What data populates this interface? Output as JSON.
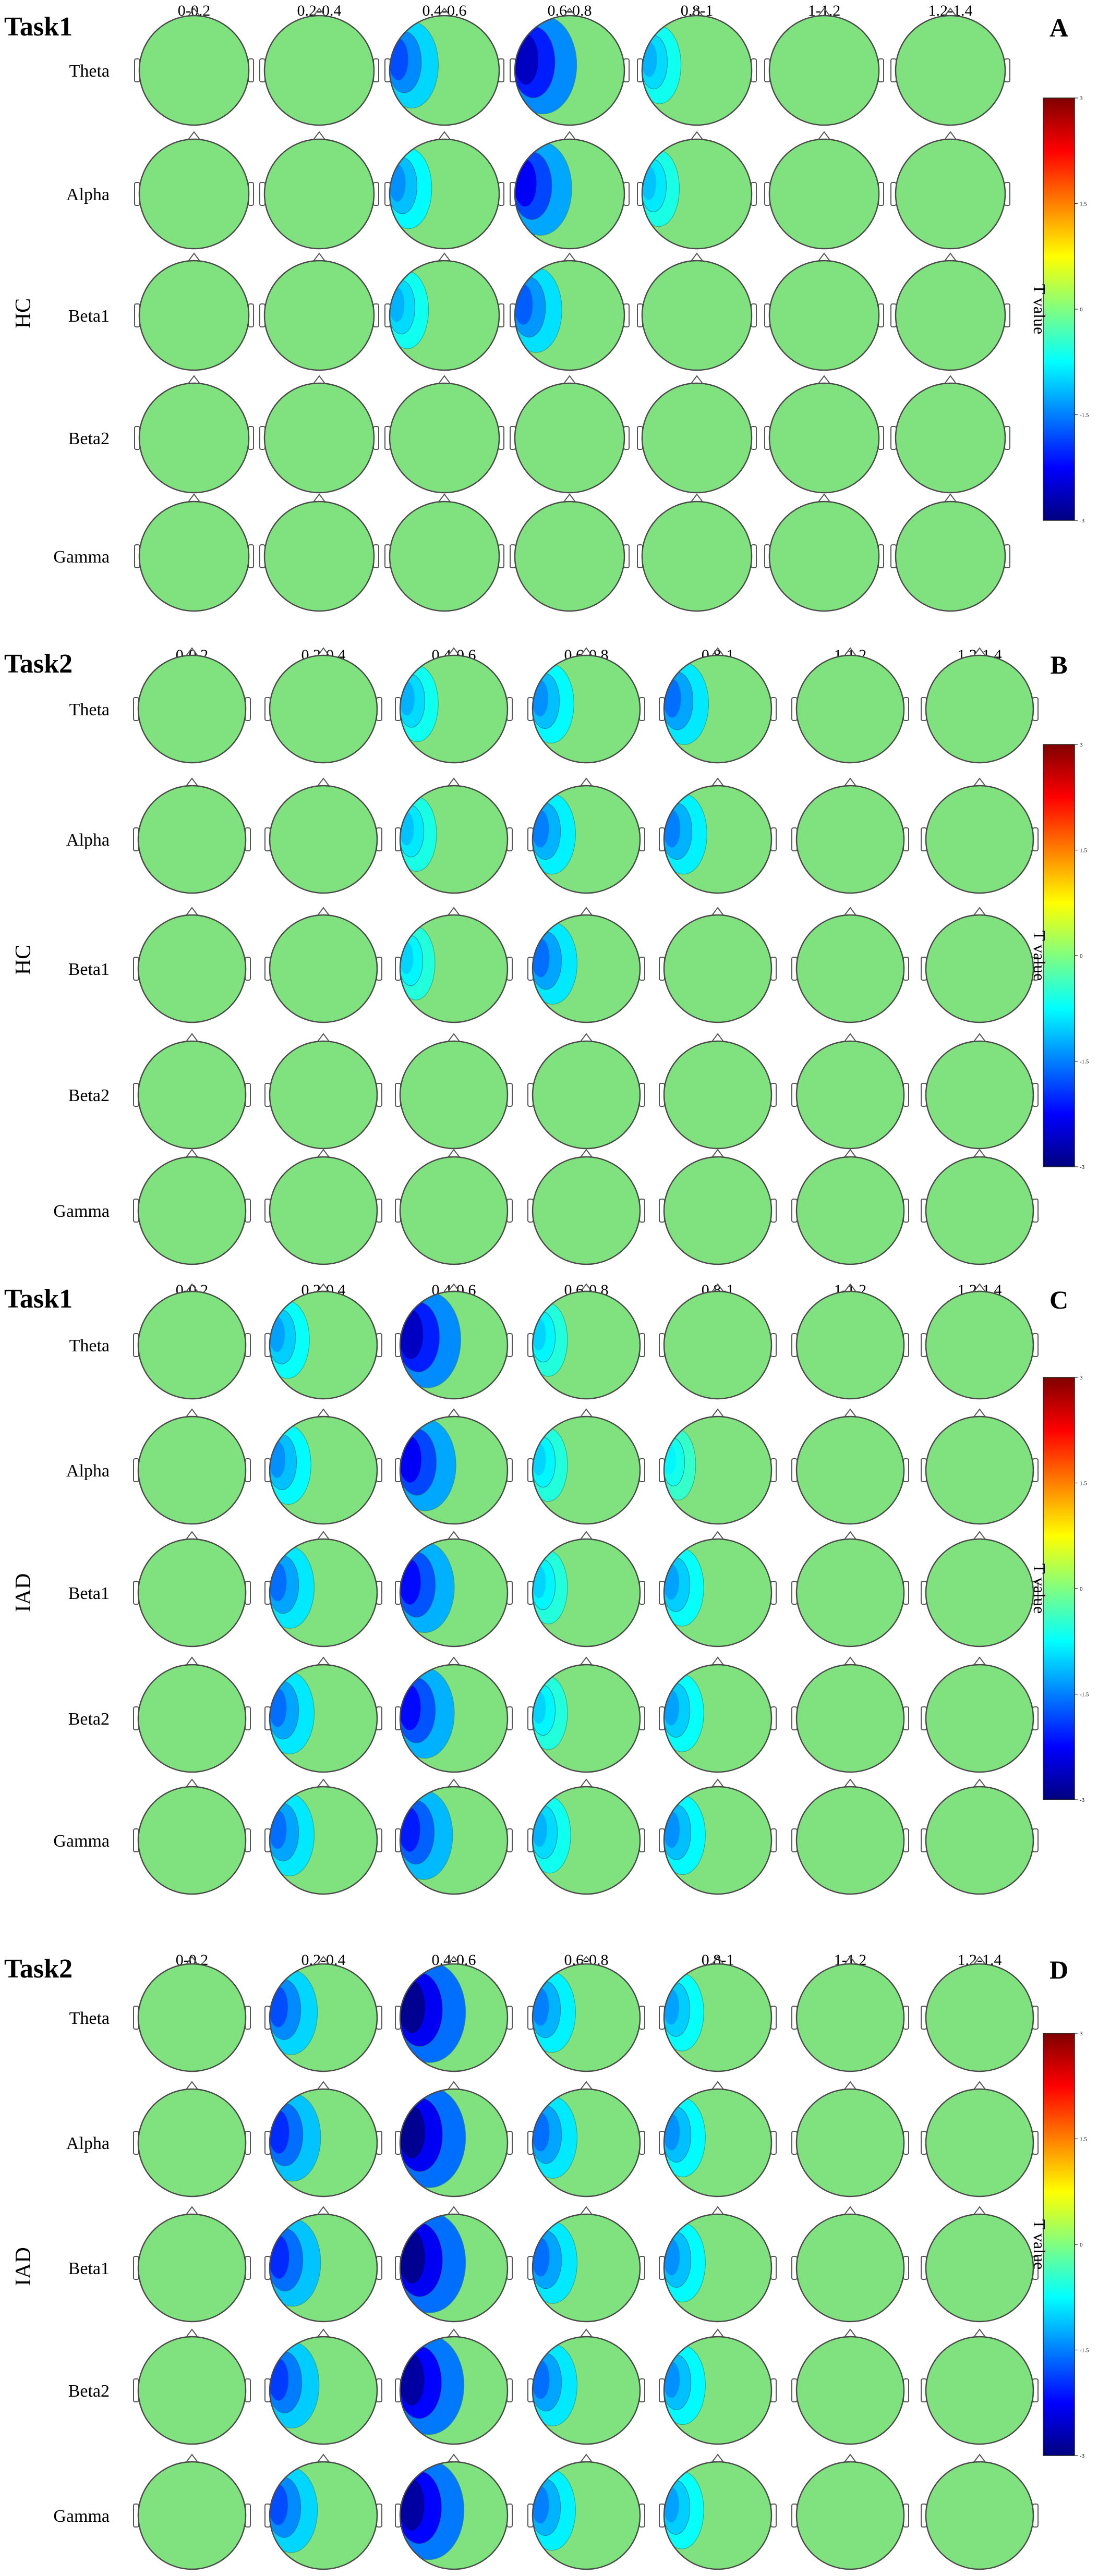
{
  "chart_data": {
    "type": "heatmap",
    "time_windows": [
      "0-0.2",
      "0.2-0.4",
      "0.4-0.6",
      "0.6-0.8",
      "0.8-1",
      "1-1.2",
      "1.2-1.4"
    ],
    "bands": [
      "Theta",
      "Alpha",
      "Beta1",
      "Beta2",
      "Gamma"
    ],
    "colorbar": {
      "title": "T value",
      "range": [
        -3,
        3
      ],
      "ticks": [
        "3",
        "1.5",
        "0",
        "-1.5",
        "-3"
      ],
      "colormap": "jet"
    },
    "panels": [
      {
        "letter": "A",
        "task": "Task1",
        "group": "HC",
        "values": [
          [
            0,
            0,
            -1.8,
            -2.6,
            -1.2,
            0,
            0
          ],
          [
            0,
            0,
            -1.4,
            -2.3,
            -1.1,
            0,
            0
          ],
          [
            0,
            0,
            -1.2,
            -1.7,
            0,
            0,
            0
          ],
          [
            0,
            0,
            0,
            0,
            0,
            0,
            0
          ],
          [
            0,
            0,
            0,
            0,
            0,
            0,
            0
          ]
        ]
      },
      {
        "letter": "B",
        "task": "Task2",
        "group": "HC",
        "values": [
          [
            0,
            0,
            -1.2,
            -1.4,
            -1.6,
            0,
            0
          ],
          [
            0,
            0,
            -1.1,
            -1.5,
            -1.5,
            0,
            0
          ],
          [
            0,
            0,
            -1.0,
            -1.6,
            0,
            0,
            0
          ],
          [
            0,
            0,
            0,
            0,
            0,
            0,
            0
          ],
          [
            0,
            0,
            0,
            0,
            0,
            0,
            0
          ]
        ]
      },
      {
        "letter": "C",
        "task": "Task1",
        "group": "IAD",
        "values": [
          [
            0,
            -1.3,
            -2.6,
            -1.0,
            0,
            0,
            0
          ],
          [
            0,
            -1.4,
            -2.3,
            -1.0,
            -0.8,
            0,
            0
          ],
          [
            0,
            -1.6,
            -2.2,
            -1.0,
            -1.3,
            0,
            0
          ],
          [
            0,
            -1.6,
            -2.2,
            -1.0,
            -1.3,
            0,
            0
          ],
          [
            0,
            -1.6,
            -2.1,
            -1.2,
            -1.4,
            0,
            0
          ]
        ]
      },
      {
        "letter": "D",
        "task": "Task2",
        "group": "IAD",
        "values": [
          [
            0,
            -1.8,
            -2.9,
            -1.5,
            -1.3,
            0,
            0
          ],
          [
            0,
            -2.0,
            -2.9,
            -1.6,
            -1.4,
            0,
            0
          ],
          [
            0,
            -2.0,
            -2.9,
            -1.6,
            -1.4,
            0,
            0
          ],
          [
            0,
            -1.9,
            -2.8,
            -1.6,
            -1.4,
            0,
            0
          ],
          [
            0,
            -1.8,
            -2.8,
            -1.5,
            -1.3,
            0,
            0
          ]
        ]
      }
    ]
  }
}
